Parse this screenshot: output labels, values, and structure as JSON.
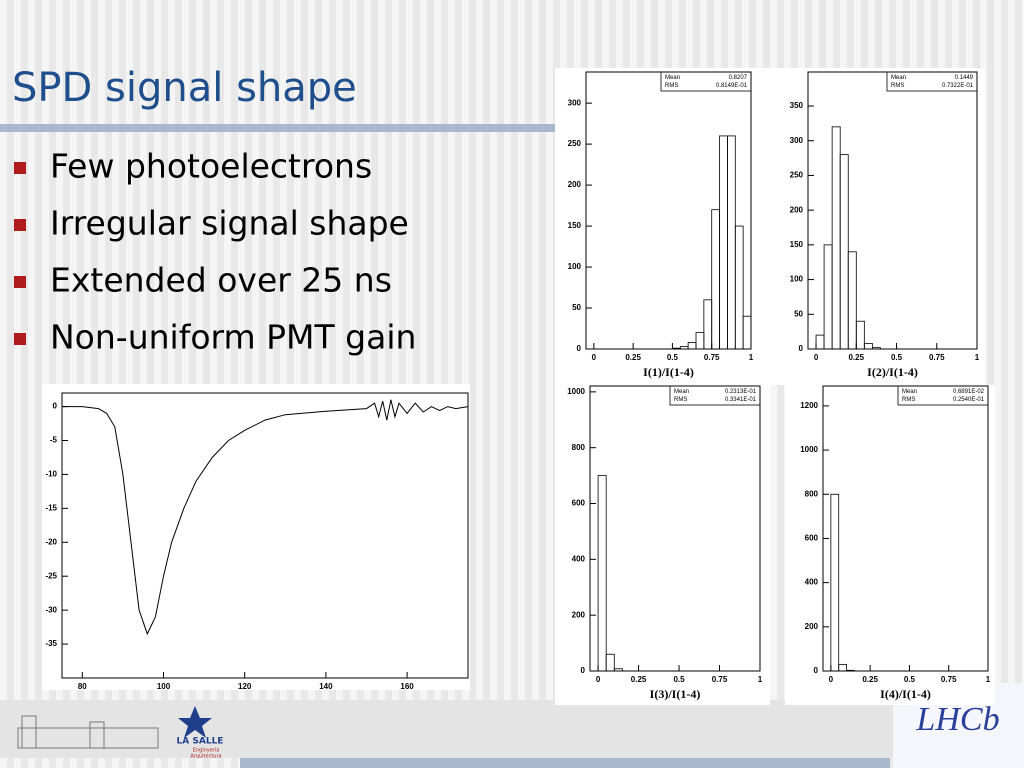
{
  "title": "SPD signal shape",
  "bullets": [
    "Few photoelectrons",
    "Irregular signal shape",
    "Extended over 25 ns",
    "Non-uniform PMT gain"
  ],
  "logos": {
    "school": "LA SALLE",
    "school_sub": [
      "Enginyeria",
      "Arquitectura"
    ],
    "experiment": "LHCb"
  },
  "chart_data": [
    {
      "type": "line",
      "color": "#000000",
      "x": [
        75,
        80,
        84,
        86,
        88,
        90,
        92,
        94,
        96,
        98,
        100,
        102,
        105,
        108,
        112,
        116,
        120,
        125,
        130,
        140,
        150,
        152,
        153,
        154,
        155,
        156,
        157,
        158,
        160,
        162,
        164,
        166,
        168,
        170,
        172,
        175
      ],
      "values": [
        0,
        0,
        -0.3,
        -1,
        -3,
        -10,
        -20,
        -30,
        -33.5,
        -31,
        -25,
        -20,
        -15,
        -11,
        -7.5,
        -5,
        -3.5,
        -2,
        -1.2,
        -0.7,
        -0.3,
        0.5,
        -1.5,
        0.8,
        -2,
        1,
        -1.5,
        0.5,
        -1,
        0.5,
        -0.8,
        0,
        -0.6,
        0,
        -0.3,
        0
      ],
      "xlim": [
        75,
        175
      ],
      "ylim": [
        -40,
        2
      ],
      "xticks": [
        80,
        100,
        120,
        140,
        160
      ],
      "yticks": [
        0,
        -5,
        -10,
        -15,
        -20,
        -25,
        -30,
        -35
      ]
    },
    {
      "type": "histogram",
      "color": "#000000",
      "x_label": "I(1)/I(1-4)",
      "stats": [
        [
          "Mean",
          "0.8207"
        ],
        [
          "RMS",
          "0.8149E-01"
        ]
      ],
      "bins": [
        0,
        0.05,
        0.1,
        0.15,
        0.2,
        0.25,
        0.3,
        0.35,
        0.4,
        0.45,
        0.5,
        0.55,
        0.6,
        0.65,
        0.7,
        0.75,
        0.8,
        0.85,
        0.9,
        0.95,
        1
      ],
      "values": [
        0,
        0,
        0,
        0,
        0,
        0,
        0,
        0,
        0,
        0,
        1,
        3,
        8,
        20,
        60,
        170,
        260,
        260,
        150,
        40
      ],
      "xlim": [
        -0.05,
        1
      ],
      "ylim": [
        0,
        338
      ],
      "xticks": [
        0,
        0.25,
        0.5,
        0.75,
        1
      ],
      "yticks": [
        0,
        50,
        100,
        150,
        200,
        250,
        300
      ]
    },
    {
      "type": "histogram",
      "color": "#000000",
      "x_label": "I(2)/I(1-4)",
      "stats": [
        [
          "Mean",
          "0.1449"
        ],
        [
          "RMS",
          "0.7322E-01"
        ]
      ],
      "bins": [
        0,
        0.05,
        0.1,
        0.15,
        0.2,
        0.25,
        0.3,
        0.35,
        0.4,
        0.45,
        0.5,
        0.55,
        0.6,
        0.65,
        0.7,
        0.75,
        0.8,
        0.85,
        0.9,
        0.95,
        1
      ],
      "values": [
        20,
        150,
        320,
        280,
        140,
        40,
        8,
        2,
        0,
        0,
        0,
        0,
        0,
        0,
        0,
        0,
        0,
        0,
        0,
        0
      ],
      "xlim": [
        -0.05,
        1
      ],
      "ylim": [
        0,
        399
      ],
      "xticks": [
        0,
        0.25,
        0.5,
        0.75,
        1
      ],
      "yticks": [
        0,
        50,
        100,
        150,
        200,
        250,
        300,
        350
      ]
    },
    {
      "type": "histogram",
      "color": "#000000",
      "x_label": "I(3)/I(1-4)",
      "stats": [
        [
          "Mean",
          "0.2313E-01"
        ],
        [
          "RMS",
          "0.3341E-01"
        ]
      ],
      "bins": [
        0,
        0.05,
        0.1,
        0.15,
        0.2,
        0.25,
        0.3,
        0.35,
        0.4,
        0.45,
        0.5,
        0.55,
        0.6,
        0.65,
        0.7,
        0.75,
        0.8,
        0.85,
        0.9,
        0.95,
        1
      ],
      "values": [
        700,
        60,
        8,
        0,
        0,
        0,
        0,
        0,
        0,
        0,
        0,
        0,
        0,
        0,
        0,
        0,
        0,
        0,
        0,
        0
      ],
      "xlim": [
        -0.05,
        1
      ],
      "ylim": [
        0,
        1021
      ],
      "xticks": [
        0,
        0.25,
        0.5,
        0.75,
        1
      ],
      "yticks": [
        0,
        200,
        400,
        600,
        800,
        1000
      ]
    },
    {
      "type": "histogram",
      "color": "#000000",
      "x_label": "I(4)/I(1-4)",
      "stats": [
        [
          "Mean",
          "0.6891E-02"
        ],
        [
          "RMS",
          "0.2540E-01"
        ]
      ],
      "bins": [
        0,
        0.05,
        0.1,
        0.15,
        0.2,
        0.25,
        0.3,
        0.35,
        0.4,
        0.45,
        0.5,
        0.55,
        0.6,
        0.65,
        0.7,
        0.75,
        0.8,
        0.85,
        0.9,
        0.95,
        1
      ],
      "values": [
        800,
        30,
        3,
        0,
        0,
        0,
        0,
        0,
        0,
        0,
        0,
        0,
        0,
        0,
        0,
        0,
        0,
        0,
        0,
        0
      ],
      "xlim": [
        -0.05,
        1
      ],
      "ylim": [
        0,
        1290
      ],
      "xticks": [
        0,
        0.25,
        0.5,
        0.75,
        1
      ],
      "yticks": [
        0,
        200,
        400,
        600,
        800,
        1000,
        1200
      ]
    }
  ]
}
